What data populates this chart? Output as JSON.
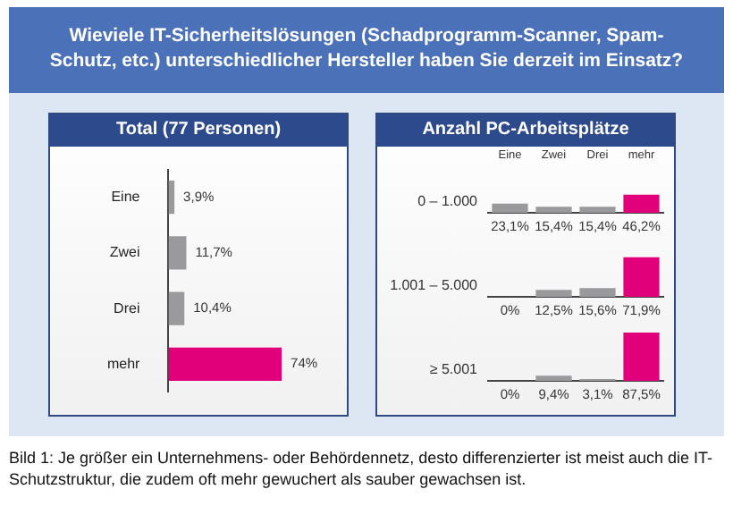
{
  "chart_data": [
    {
      "type": "bar",
      "orientation": "horizontal",
      "title": "Wieviele IT-Sicherheitslösungen (Schadprogramm-Scanner, Spam-Schutz, etc.) unterschiedlicher Hersteller haben Sie derzeit im Einsatz?",
      "subtitle": "Total (77 Personen)",
      "categories": [
        "Eine",
        "Zwei",
        "Drei",
        "mehr"
      ],
      "values": [
        3.9,
        11.7,
        10.4,
        74
      ],
      "value_labels": [
        "3,9%",
        "11,7%",
        "10,4%",
        "74%"
      ],
      "colors": [
        "#9a9a9c",
        "#9a9a9c",
        "#9a9a9c",
        "#e2007a"
      ],
      "tick_labels": "y",
      "annotations": [
        "Bild 1: Je größer ein Unternehmens- oder Behördennetz, desto differenzierter ist meist auch die IT-Schutzstruktur, die zudem oft mehr gewuchert als sauber gewachsen ist."
      ]
    },
    {
      "type": "bar",
      "title": "Anzahl PC-Arbeitsplätze",
      "ylabel": "0 – 1.000",
      "categories": [
        "Eine",
        "Zwei",
        "Drei",
        "mehr"
      ],
      "values": [
        23.1,
        15.4,
        15.4,
        46.2
      ],
      "value_labels": [
        "23,1%",
        "15,4%",
        "15,4%",
        "46,2%"
      ],
      "colors": [
        "#9a9a9c",
        "#9a9a9c",
        "#9a9a9c",
        "#e2007a"
      ],
      "tick_labels": "x"
    },
    {
      "type": "bar",
      "ylabel": "1.001 – 5.000",
      "categories": [
        null,
        null,
        null,
        null
      ],
      "values": [
        0,
        12.5,
        15.6,
        71.9
      ],
      "value_labels": [
        "0%",
        "12,5%",
        "15,6%",
        "71,9%"
      ],
      "colors": [
        "#9a9a9c",
        "#9a9a9c",
        "#9a9a9c",
        "#e2007a"
      ],
      "tick_labels": false
    },
    {
      "type": "bar",
      "ylabel": "≥ 5.001",
      "categories": [
        null,
        null,
        null,
        null
      ],
      "values": [
        0,
        9.4,
        3.1,
        87.5
      ],
      "value_labels": [
        "0%",
        "9,4%",
        "3,1%",
        "87,5%"
      ],
      "colors": [
        "#9a9a9c",
        "#9a9a9c",
        "#9a9a9c",
        "#e2007a"
      ],
      "tick_labels": false
    }
  ]
}
